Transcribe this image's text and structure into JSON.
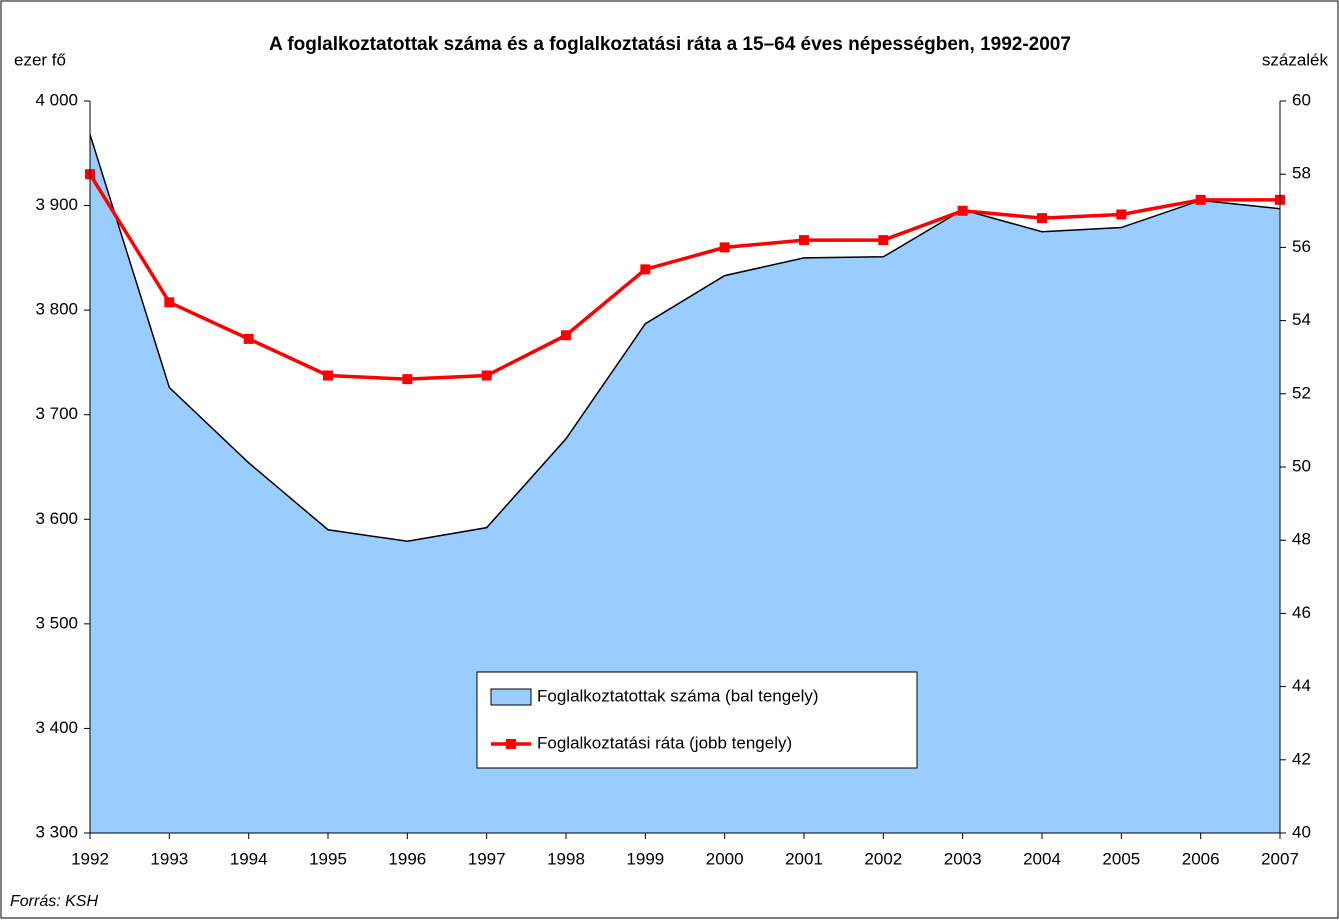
{
  "chart_data": {
    "type": "area-line",
    "title": "A foglalkoztatottak száma és a foglalkoztatási ráta a 15–64 éves népességben, 1992-2007",
    "y_label": "ezer fő",
    "y2_label": "százalék",
    "source": "Forrás: KSH",
    "categories": [
      "1992",
      "1993",
      "1994",
      "1995",
      "1996",
      "1997",
      "1998",
      "1999",
      "2000",
      "2001",
      "2002",
      "2003",
      "2004",
      "2005",
      "2006",
      "2007"
    ],
    "series": [
      {
        "name": "Foglalkoztatottak száma (bal tengely)",
        "type": "area",
        "color": "#99ccff",
        "axis": "y",
        "values": [
          3968,
          3726,
          3654,
          3590,
          3579,
          3592,
          3677,
          3787,
          3833,
          3850,
          3851,
          3896,
          3875,
          3879,
          3905,
          3897
        ]
      },
      {
        "name": "Foglalkoztatási ráta (jobb tengely)",
        "type": "line",
        "color": "#ff0000",
        "axis": "y2",
        "values": [
          58.0,
          54.5,
          53.5,
          52.5,
          52.4,
          52.5,
          53.6,
          55.4,
          56.0,
          56.2,
          56.2,
          57.0,
          56.8,
          56.9,
          57.3,
          57.3
        ]
      }
    ],
    "ylim": [
      3300,
      4000
    ],
    "yticks": [
      {
        "value": 3300,
        "label": "3 300"
      },
      {
        "value": 3400,
        "label": "3 400"
      },
      {
        "value": 3500,
        "label": "3 500"
      },
      {
        "value": 3600,
        "label": "3 600"
      },
      {
        "value": 3700,
        "label": "3 700"
      },
      {
        "value": 3800,
        "label": "3 800"
      },
      {
        "value": 3900,
        "label": "3 900"
      },
      {
        "value": 4000,
        "label": "4 000"
      }
    ],
    "y2lim": [
      40,
      60
    ],
    "y2ticks": [
      40,
      42,
      44,
      46,
      48,
      50,
      52,
      54,
      56,
      58,
      60
    ],
    "grid": false,
    "legend": "bottom-center"
  }
}
